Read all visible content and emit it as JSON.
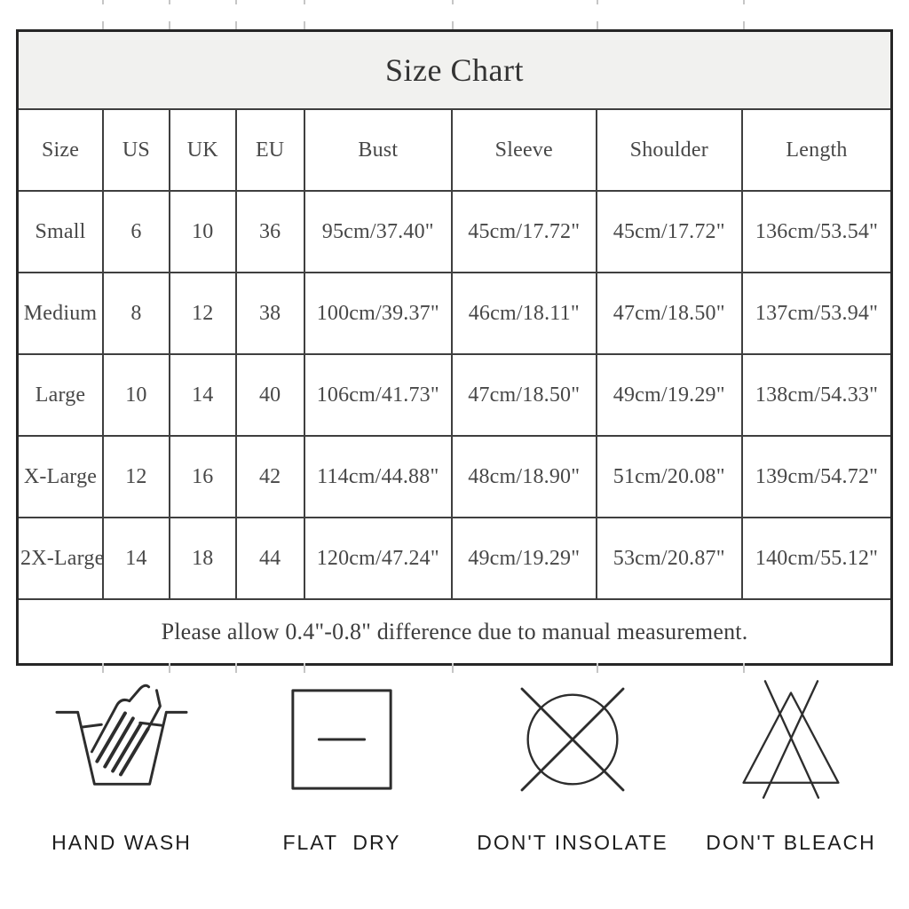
{
  "table": {
    "title": "Size Chart",
    "columns": [
      "Size",
      "US",
      "UK",
      "EU",
      "Bust",
      "Sleeve",
      "Shoulder",
      "Length"
    ],
    "rows": [
      [
        "Small",
        "6",
        "10",
        "36",
        "95cm/37.40\"",
        "45cm/17.72\"",
        "45cm/17.72\"",
        "136cm/53.54\""
      ],
      [
        "Medium",
        "8",
        "12",
        "38",
        "100cm/39.37\"",
        "46cm/18.11\"",
        "47cm/18.50\"",
        "137cm/53.94\""
      ],
      [
        "Large",
        "10",
        "14",
        "40",
        "106cm/41.73\"",
        "47cm/18.50\"",
        "49cm/19.29\"",
        "138cm/54.33\""
      ],
      [
        "X-Large",
        "12",
        "16",
        "42",
        "114cm/44.88\"",
        "48cm/18.90\"",
        "51cm/20.08\"",
        "139cm/54.72\""
      ],
      [
        "2X-Large",
        "14",
        "18",
        "44",
        "120cm/47.24\"",
        "49cm/19.29\"",
        "53cm/20.87\"",
        "140cm/55.12\""
      ]
    ],
    "note": "Please allow 0.4\"-0.8\" difference due to manual measurement."
  },
  "care_instructions": [
    {
      "icon": "hand-wash-icon",
      "label": "HAND WASH"
    },
    {
      "icon": "flat-dry-icon",
      "label": "FLAT  DRY"
    },
    {
      "icon": "dont-insolate-icon",
      "label": "DON'T INSOLATE"
    },
    {
      "icon": "dont-bleach-icon",
      "label": "DON'T BLEACH"
    }
  ],
  "colors": {
    "title_band_bg": "#f1f1ef",
    "table_border": "#262626",
    "grid_line": "#3f3f3f",
    "table_text": "#474747",
    "care_text": "#1c1c1c",
    "icon_stroke": "#2d2d2d"
  }
}
